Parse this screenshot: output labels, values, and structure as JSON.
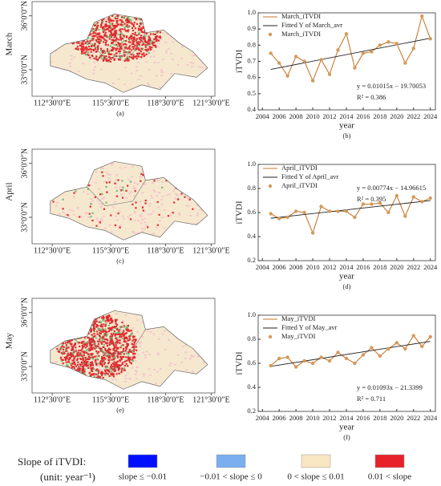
{
  "maps": [
    {
      "row_label": "March",
      "panel_label": "(a)"
    },
    {
      "row_label": "April",
      "panel_label": "(c)"
    },
    {
      "row_label": "May",
      "panel_label": "(e)"
    }
  ],
  "map_axis": {
    "lat_labels": [
      "36°0′0″N",
      "33°0′0″N"
    ],
    "lon_labels": [
      "112°30′0″E",
      "115°30′0″E",
      "118°30′0″E",
      "121°30′0″E"
    ]
  },
  "chart_data": [
    {
      "type": "line",
      "panel_label": "(b)",
      "xlabel": "year",
      "ylabel": "iTVDI",
      "equation": "y = 0.01015x − 19.70053",
      "r_squared": "R² = 0.386",
      "x": [
        2005,
        2006,
        2007,
        2008,
        2009,
        2010,
        2011,
        2012,
        2013,
        2014,
        2015,
        2016,
        2017,
        2018,
        2019,
        2020,
        2021,
        2022,
        2023,
        2024
      ],
      "xlim": [
        2003.5,
        2024.6
      ],
      "xticks": [
        2004,
        2006,
        2008,
        2010,
        2012,
        2014,
        2016,
        2018,
        2020,
        2022,
        2024
      ],
      "ylim": [
        0.4,
        1.0
      ],
      "yticks": [
        0.4,
        0.5,
        0.6,
        0.7,
        0.8,
        0.9,
        {
          "value": 1,
          "label": "1.0"
        }
      ],
      "series": [
        {
          "name": "March_iTVDI",
          "style": "line",
          "color": "#c8782e",
          "values": [
            0.75,
            0.69,
            0.61,
            0.73,
            0.7,
            0.58,
            0.71,
            0.62,
            0.77,
            0.87,
            0.66,
            0.75,
            0.76,
            0.8,
            0.82,
            0.81,
            0.69,
            0.78,
            0.98,
            0.84
          ]
        },
        {
          "name": "Fitted Y of March_avr",
          "style": "fit",
          "color": "#222222",
          "x": [
            2005,
            2024
          ],
          "values": [
            0.65022,
            0.84307
          ]
        },
        {
          "name": "March_iTVDI",
          "style": "marker",
          "color": "#d49a5c",
          "values": [
            0.75,
            0.69,
            0.61,
            0.73,
            0.7,
            0.58,
            0.71,
            0.62,
            0.77,
            0.87,
            0.66,
            0.75,
            0.76,
            0.8,
            0.82,
            0.81,
            0.69,
            0.78,
            0.98,
            0.84
          ]
        }
      ]
    },
    {
      "type": "line",
      "panel_label": "(d)",
      "xlabel": "year",
      "ylabel": "iTVDI",
      "equation": "y = 0.00774x − 14.96615",
      "r_squared": "R² = 0.395",
      "x": [
        2005,
        2006,
        2007,
        2008,
        2009,
        2010,
        2011,
        2012,
        2013,
        2014,
        2015,
        2016,
        2017,
        2018,
        2019,
        2020,
        2021,
        2022,
        2023,
        2024
      ],
      "xlim": [
        2003.5,
        2024.6
      ],
      "xticks": [
        2004,
        2006,
        2008,
        2010,
        2012,
        2014,
        2016,
        2018,
        2020,
        2022,
        2024
      ],
      "ylim": [
        0.2,
        1.0
      ],
      "yticks": [
        0.2,
        0.4,
        0.6,
        0.8,
        {
          "value": 1,
          "label": "1.0"
        }
      ],
      "series": [
        {
          "name": "April_iTVDI",
          "style": "line",
          "color": "#c8782e",
          "values": [
            0.59,
            0.55,
            0.56,
            0.61,
            0.6,
            0.43,
            0.65,
            0.61,
            0.61,
            0.61,
            0.56,
            0.67,
            0.67,
            0.68,
            0.6,
            0.74,
            0.57,
            0.73,
            0.69,
            0.72
          ]
        },
        {
          "name": "Fitted Y of April_avr",
          "style": "fit",
          "color": "#222222",
          "x": [
            2005,
            2024
          ],
          "values": [
            0.55255,
            0.69961
          ]
        },
        {
          "name": "April_iTVDI",
          "style": "marker",
          "color": "#d49a5c",
          "values": [
            0.59,
            0.55,
            0.56,
            0.61,
            0.6,
            0.43,
            0.65,
            0.61,
            0.61,
            0.61,
            0.56,
            0.67,
            0.67,
            0.68,
            0.6,
            0.74,
            0.57,
            0.73,
            0.69,
            0.72
          ]
        }
      ]
    },
    {
      "type": "line",
      "panel_label": "(f)",
      "xlabel": "year",
      "ylabel": "iTVDI",
      "equation": "y = 0.01093x − 21.3399",
      "r_squared": "R² = 0.711",
      "x": [
        2005,
        2006,
        2007,
        2008,
        2009,
        2010,
        2011,
        2012,
        2013,
        2014,
        2015,
        2016,
        2017,
        2018,
        2019,
        2020,
        2021,
        2022,
        2023,
        2024
      ],
      "xlim": [
        2003.5,
        2024.6
      ],
      "xticks": [
        2004,
        2006,
        2008,
        2010,
        2012,
        2014,
        2016,
        2018,
        2020,
        2022,
        2024
      ],
      "ylim": [
        0.2,
        1.0
      ],
      "yticks": [
        0.2,
        0.4,
        0.6,
        0.8,
        {
          "value": 1,
          "label": "1.0"
        }
      ],
      "series": [
        {
          "name": "May_iTVDI",
          "style": "line",
          "color": "#c8782e",
          "values": [
            0.58,
            0.64,
            0.65,
            0.57,
            0.62,
            0.6,
            0.65,
            0.62,
            0.69,
            0.64,
            0.6,
            0.67,
            0.73,
            0.66,
            0.72,
            0.77,
            0.72,
            0.83,
            0.74,
            0.82
          ]
        },
        {
          "name": "Fitted Y of May_avr",
          "style": "fit",
          "color": "#222222",
          "x": [
            2005,
            2024
          ],
          "values": [
            0.57475,
            0.78242
          ]
        },
        {
          "name": "May_iTVDI",
          "style": "marker",
          "color": "#d49a5c",
          "values": [
            0.58,
            0.64,
            0.65,
            0.57,
            0.62,
            0.6,
            0.65,
            0.62,
            0.69,
            0.64,
            0.6,
            0.67,
            0.73,
            0.66,
            0.72,
            0.77,
            0.72,
            0.83,
            0.74,
            0.82
          ]
        }
      ]
    }
  ],
  "legend": {
    "title": "Slope of iTVDI:",
    "unit": "(unit: year⁻¹)",
    "items": [
      {
        "label": "slope ≤ −0.01",
        "color": "#0010ff"
      },
      {
        "label": "−0.01 < slope ≤ 0",
        "color": "#79aef0"
      },
      {
        "label": "0 < slope ≤ 0.01",
        "color": "#f8e6c2"
      },
      {
        "label": "0.01 < slope",
        "color": "#e8222a"
      }
    ]
  }
}
